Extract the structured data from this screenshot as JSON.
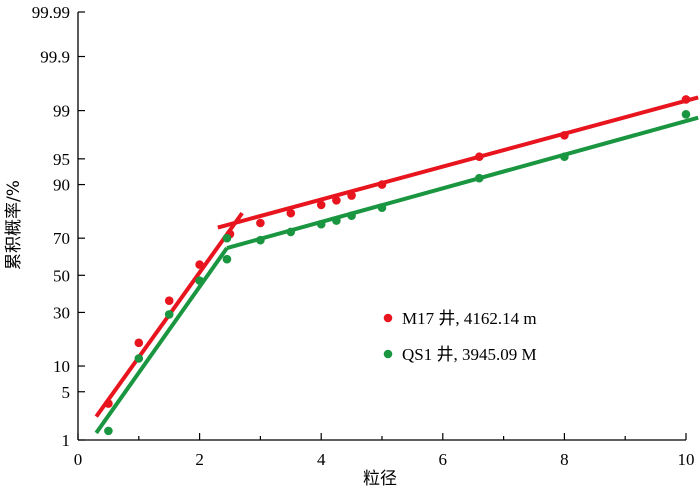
{
  "chart_data": {
    "type": "scatter",
    "title": "",
    "xlabel": "粒径",
    "ylabel": "累积概率/%",
    "xlim": [
      0,
      10
    ],
    "x_ticks": [
      0,
      2,
      4,
      6,
      8,
      10
    ],
    "x_tick_labels": [
      "0",
      "2",
      "4",
      "6",
      "8",
      "10"
    ],
    "y_scale": "probability",
    "y_ticks": [
      1,
      5,
      10,
      30,
      50,
      70,
      90,
      95,
      99,
      99.9,
      99.99
    ],
    "y_tick_labels": [
      "1",
      "5",
      "10",
      "30",
      "50",
      "70",
      "90",
      "95",
      "99",
      "99.9",
      "99.99"
    ],
    "grid": false,
    "legend_position": "center-right",
    "series": [
      {
        "name": "M17 井, 4162.14 m",
        "color": "#e8141e",
        "points": [
          {
            "x": 0.5,
            "y": 3.5
          },
          {
            "x": 1.0,
            "y": 17
          },
          {
            "x": 1.5,
            "y": 36
          },
          {
            "x": 2.0,
            "y": 56
          },
          {
            "x": 2.5,
            "y": 72
          },
          {
            "x": 3.0,
            "y": 77
          },
          {
            "x": 3.5,
            "y": 81
          },
          {
            "x": 4.0,
            "y": 84
          },
          {
            "x": 4.25,
            "y": 85.5
          },
          {
            "x": 4.5,
            "y": 87
          },
          {
            "x": 5.0,
            "y": 90
          },
          {
            "x": 6.6,
            "y": 95.3
          },
          {
            "x": 8.0,
            "y": 97.6
          },
          {
            "x": 10.0,
            "y": 99.35
          }
        ],
        "fit_lines": [
          {
            "x": [
              0.3,
              2.7
            ],
            "y": [
              2.3,
              81
            ]
          },
          {
            "x": [
              2.3,
              10.2
            ],
            "y": [
              75,
              99.4
            ]
          }
        ]
      },
      {
        "name": "QS1 井, 3945.09 M",
        "color": "#1a9641",
        "points": [
          {
            "x": 0.5,
            "y": 1.4
          },
          {
            "x": 1.0,
            "y": 12
          },
          {
            "x": 1.5,
            "y": 29
          },
          {
            "x": 2.0,
            "y": 47
          },
          {
            "x": 2.45,
            "y": 59
          },
          {
            "x": 2.45,
            "y": 70
          },
          {
            "x": 3.0,
            "y": 69
          },
          {
            "x": 3.5,
            "y": 73
          },
          {
            "x": 4.0,
            "y": 76.5
          },
          {
            "x": 4.25,
            "y": 78
          },
          {
            "x": 4.5,
            "y": 80
          },
          {
            "x": 5.0,
            "y": 83
          },
          {
            "x": 6.6,
            "y": 91.5
          },
          {
            "x": 8.0,
            "y": 95.3
          },
          {
            "x": 10.0,
            "y": 98.85
          }
        ],
        "fit_lines": [
          {
            "x": [
              0.3,
              2.45
            ],
            "y": [
              1.3,
              65
            ]
          },
          {
            "x": [
              2.45,
              10.2
            ],
            "y": [
              65,
              98.7
            ]
          }
        ]
      }
    ]
  }
}
